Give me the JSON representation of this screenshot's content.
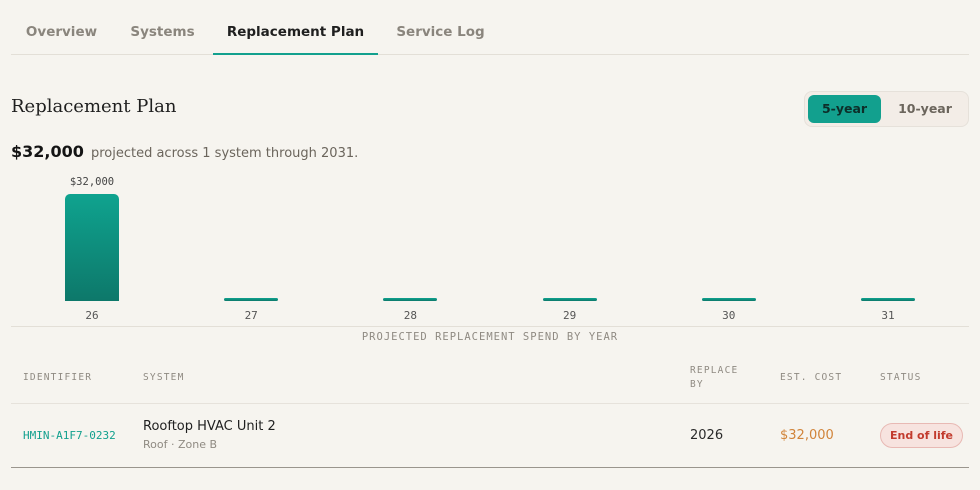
{
  "tabs": [
    {
      "label": "Overview"
    },
    {
      "label": "Systems"
    },
    {
      "label": "Replacement Plan",
      "active": true
    },
    {
      "label": "Service Log"
    }
  ],
  "page": {
    "title": "Replacement Plan",
    "horizon_toggle": {
      "options": [
        "5-year",
        "10-year"
      ],
      "selected": "5-year"
    },
    "summary": {
      "amount": "$32,000",
      "text": "projected across 1 system through 2031."
    }
  },
  "colors": {
    "accent": "#12a08e",
    "cost": "#d1843a",
    "status_danger": "#c23b2e"
  },
  "chart_data": {
    "type": "bar",
    "categories": [
      "26",
      "27",
      "28",
      "29",
      "30",
      "31"
    ],
    "values": [
      32000,
      0,
      0,
      0,
      0,
      0
    ],
    "data_labels": [
      "$32,000",
      "",
      "",
      "",
      "",
      ""
    ],
    "caption": "PROJECTED REPLACEMENT SPEND BY YEAR",
    "ylim": [
      0,
      32000
    ],
    "grid": false
  },
  "table": {
    "columns": [
      "IDENTIFIER",
      "SYSTEM",
      "REPLACE BY",
      "EST. COST",
      "STATUS"
    ],
    "rows": [
      {
        "identifier": "HMIN-A1F7-0232",
        "system": "Rooftop HVAC Unit 2",
        "location": "Roof · Zone B",
        "replace_by": "2026",
        "cost": "$32,000",
        "status": "End of life"
      }
    ]
  }
}
